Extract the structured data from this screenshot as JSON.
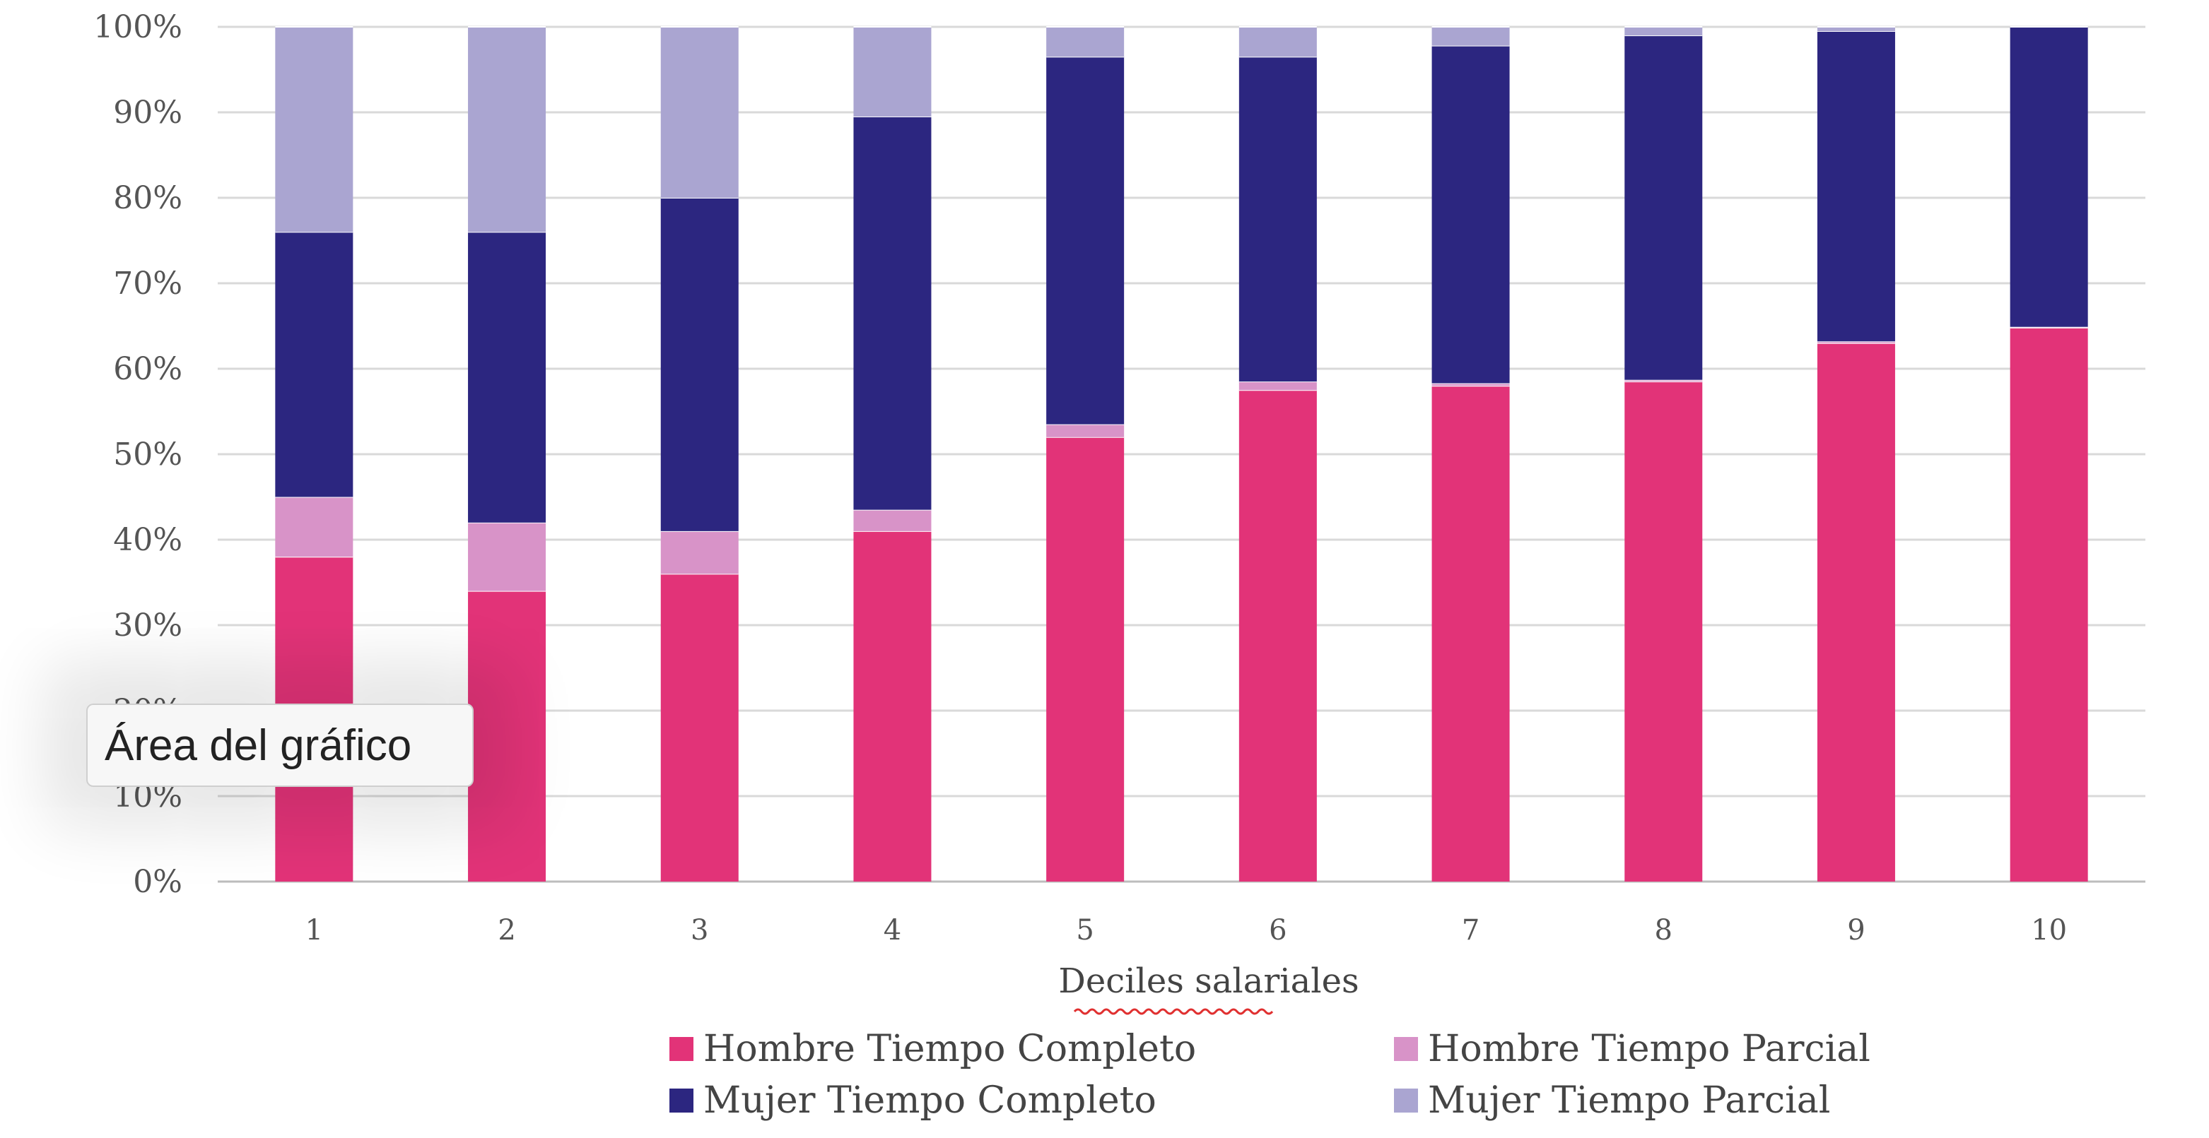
{
  "tooltip": {
    "label": "Área del gráfico"
  },
  "chart_data": {
    "type": "bar",
    "stacked": true,
    "percent_stacked": true,
    "categories": [
      "1",
      "2",
      "3",
      "4",
      "5",
      "6",
      "7",
      "8",
      "9",
      "10"
    ],
    "series": [
      {
        "name": "Hombre Tiempo Completo",
        "color": "#e23378",
        "values": [
          38,
          34,
          36,
          41,
          52,
          57.5,
          58,
          58.5,
          63,
          64.8
        ]
      },
      {
        "name": "Hombre Tiempo Parcial",
        "color": "#d893c8",
        "values": [
          7,
          8,
          5,
          2.5,
          1.5,
          1,
          0.3,
          0.2,
          0.2,
          0.1
        ]
      },
      {
        "name": "Mujer Tiempo Completo",
        "color": "#2c2680",
        "values": [
          31,
          34,
          39,
          46,
          43,
          38,
          39.5,
          40.3,
          36.3,
          35.1
        ]
      },
      {
        "name": "Mujer Tiempo Parcial",
        "color": "#aaa5d1",
        "values": [
          24,
          24,
          20,
          10.5,
          3.5,
          3.5,
          2.2,
          1,
          0.5,
          0
        ]
      }
    ],
    "xlabel": "Deciles salariales",
    "ylabel": "",
    "ylim": [
      0,
      100
    ],
    "y_ticks": [
      "0%",
      "10%",
      "20%",
      "30%",
      "40%",
      "50%",
      "60%",
      "70%",
      "80%",
      "90%",
      "100%"
    ],
    "grid": true,
    "legend_position": "bottom"
  }
}
